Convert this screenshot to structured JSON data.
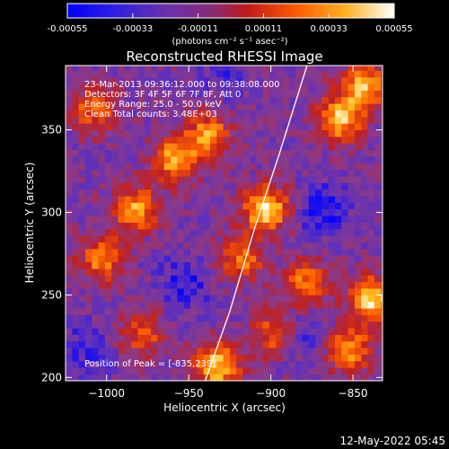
{
  "chart_data": {
    "type": "heatmap",
    "title": "Reconstructed RHESSI Image",
    "xlabel": "Heliocentric X (arcsec)",
    "ylabel": "Heliocentric Y (arcsec)",
    "xlim": [
      -1025,
      -832
    ],
    "ylim": [
      198,
      389
    ],
    "x_ticks": [
      -1000,
      -950,
      -900,
      -850
    ],
    "y_ticks": [
      200,
      250,
      300,
      350
    ],
    "grid": false,
    "colorbar": {
      "range": [
        -0.00055,
        0.00055
      ],
      "ticks": [
        "-0.00055",
        "-0.00033",
        "-0.00011",
        "0.00011",
        "0.00033",
        "0.00055"
      ],
      "unit_label": "(photons cm⁻² s⁻¹ asec⁻²)",
      "colormap": [
        "#0000ff",
        "#5a2fc0",
        "#8a3a8c",
        "#c02020",
        "#ff6000",
        "#ffc020",
        "#ffffff"
      ]
    },
    "annotations": {
      "time_range": "23-Mar-2013 09:36:12.000 to 09:38:08.000",
      "detectors": "Detectors: 3F 4F 5F 6F 7F 8F, Att 0",
      "energy_range": "Energy Range: 25.0 - 50.0 keV",
      "counts": "Clean    Total counts: 3.48E+03",
      "peak": "Position of Peak = [-835,239]"
    },
    "limb_curve": [
      [
        -940,
        198
      ],
      [
        -925,
        240
      ],
      [
        -910,
        290
      ],
      [
        -895,
        335
      ],
      [
        -878,
        389
      ]
    ],
    "hot_spots": [
      {
        "x": -905,
        "y": 300,
        "w": 1.0
      },
      {
        "x": -960,
        "y": 330,
        "w": 0.85
      },
      {
        "x": -985,
        "y": 300,
        "w": 0.8
      },
      {
        "x": -1005,
        "y": 270,
        "w": 0.7
      },
      {
        "x": -940,
        "y": 345,
        "w": 0.75
      },
      {
        "x": -860,
        "y": 355,
        "w": 0.9
      },
      {
        "x": -845,
        "y": 375,
        "w": 0.85
      },
      {
        "x": -840,
        "y": 245,
        "w": 1.0
      },
      {
        "x": -855,
        "y": 215,
        "w": 0.8
      },
      {
        "x": -935,
        "y": 205,
        "w": 0.95
      },
      {
        "x": -880,
        "y": 255,
        "w": 0.7
      },
      {
        "x": -900,
        "y": 225,
        "w": 0.6
      },
      {
        "x": -980,
        "y": 225,
        "w": 0.55
      },
      {
        "x": -1010,
        "y": 360,
        "w": 0.6
      },
      {
        "x": -920,
        "y": 270,
        "w": 0.65
      }
    ],
    "cold_spots": [
      {
        "x": -955,
        "y": 255,
        "w": 0.8
      },
      {
        "x": -870,
        "y": 300,
        "w": 0.9
      },
      {
        "x": -880,
        "y": 225,
        "w": 0.7
      },
      {
        "x": -1015,
        "y": 215,
        "w": 0.6
      },
      {
        "x": -930,
        "y": 380,
        "w": 0.5
      }
    ]
  },
  "footer": {
    "timestamp": "12-May-2022 05:45"
  }
}
